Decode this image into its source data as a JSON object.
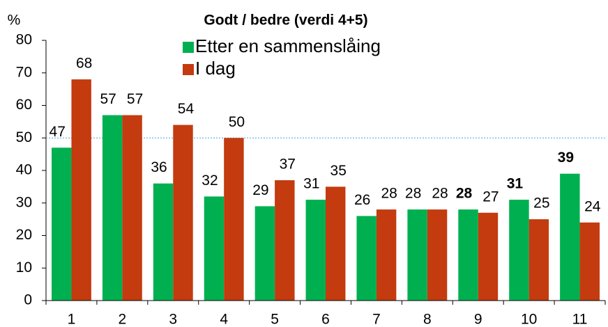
{
  "chart_data": {
    "type": "bar",
    "title": "Godt / bedre (verdi 4+5)",
    "y_label": "%",
    "categories": [
      "1",
      "2",
      "3",
      "4",
      "5",
      "6",
      "7",
      "8",
      "9",
      "10",
      "11"
    ],
    "series": [
      {
        "name": "Etter en sammenslåing",
        "color": "#00b050",
        "values": [
          47,
          57,
          36,
          32,
          29,
          31,
          26,
          28,
          28,
          31,
          39
        ],
        "bold_value_indices": [
          8,
          9,
          10
        ]
      },
      {
        "name": "I dag",
        "color": "#c33b0f",
        "values": [
          68,
          57,
          54,
          50,
          37,
          35,
          28,
          28,
          27,
          25,
          24
        ]
      }
    ],
    "ylim": [
      0,
      80
    ],
    "yticks": [
      0,
      10,
      20,
      30,
      40,
      50,
      60,
      70,
      80
    ],
    "reference_line": 50
  }
}
